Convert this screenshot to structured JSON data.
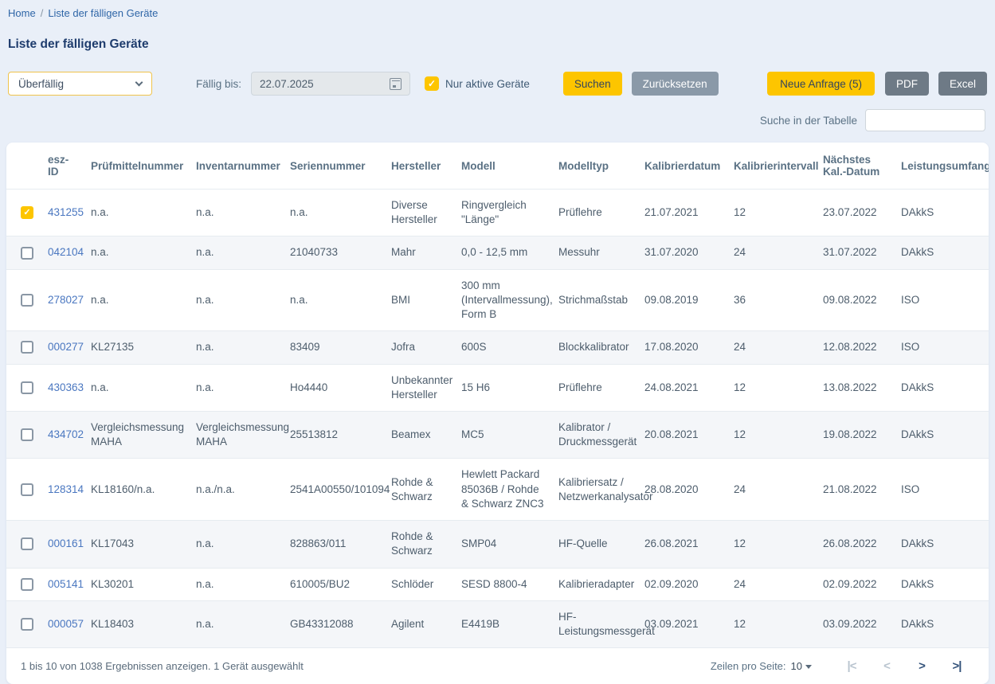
{
  "breadcrumb": {
    "home": "Home",
    "separator": "/",
    "current": "Liste der fälligen Geräte"
  },
  "page": {
    "title": "Liste der fälligen Geräte"
  },
  "filters": {
    "status_select_value": "Überfällig",
    "due_label": "Fällig bis:",
    "due_value": "22.07.2025",
    "active_checkbox_label": "Nur aktive Geräte",
    "active_checkbox_checked": true,
    "search_button": "Suchen",
    "reset_button": "Zurücksetzen",
    "new_request_button": "Neue Anfrage (5)",
    "pdf_button": "PDF",
    "excel_button": "Excel"
  },
  "table_search": {
    "label": "Suche in der Tabelle",
    "value": ""
  },
  "table": {
    "columns": [
      "esz-ID",
      "Prüfmittelnummer",
      "Inventarnummer",
      "Seriennummer",
      "Hersteller",
      "Modell",
      "Modelltyp",
      "Kalibrierdatum",
      "Kalibrierintervall",
      "Nächstes Kal.-Datum",
      "Leistungsumfang"
    ],
    "rows": [
      {
        "selected": true,
        "cells": [
          "431255",
          "n.a.",
          "n.a.",
          "n.a.",
          "Diverse Hersteller",
          "Ringvergleich \"Länge\"",
          "Prüflehre",
          "21.07.2021",
          "12",
          "23.07.2022",
          "DAkkS"
        ]
      },
      {
        "selected": false,
        "cells": [
          "042104",
          "n.a.",
          "n.a.",
          "21040733",
          "Mahr",
          "0,0 - 12,5 mm",
          "Messuhr",
          "31.07.2020",
          "24",
          "31.07.2022",
          "DAkkS"
        ]
      },
      {
        "selected": false,
        "cells": [
          "278027",
          "n.a.",
          "n.a.",
          "n.a.",
          "BMI",
          "300 mm (Intervallmessung), Form B",
          "Strichmaßstab",
          "09.08.2019",
          "36",
          "09.08.2022",
          "ISO"
        ]
      },
      {
        "selected": false,
        "cells": [
          "000277",
          "KL27135",
          "n.a.",
          "83409",
          "Jofra",
          "600S",
          "Blockkalibrator",
          "17.08.2020",
          "24",
          "12.08.2022",
          "ISO"
        ]
      },
      {
        "selected": false,
        "cells": [
          "430363",
          "n.a.",
          "n.a.",
          "Ho4440",
          "Unbekannter Hersteller",
          "15 H6",
          "Prüflehre",
          "24.08.2021",
          "12",
          "13.08.2022",
          "DAkkS"
        ]
      },
      {
        "selected": false,
        "cells": [
          "434702",
          "Vergleichsmessung MAHA",
          "Vergleichsmessung MAHA",
          "25513812",
          "Beamex",
          "MC5",
          "Kalibrator / Druckmessgerät",
          "20.08.2021",
          "12",
          "19.08.2022",
          "DAkkS"
        ]
      },
      {
        "selected": false,
        "cells": [
          "128314",
          "KL18160/n.a.",
          "n.a./n.a.",
          "2541A00550/101094",
          "Rohde & Schwarz",
          "Hewlett Packard 85036B / Rohde & Schwarz ZNC3",
          "Kalibriersatz / Netzwerkanalysator",
          "28.08.2020",
          "24",
          "21.08.2022",
          "ISO"
        ]
      },
      {
        "selected": false,
        "cells": [
          "000161",
          "KL17043",
          "n.a.",
          "828863/011",
          "Rohde & Schwarz",
          "SMP04",
          "HF-Quelle",
          "26.08.2021",
          "12",
          "26.08.2022",
          "DAkkS"
        ]
      },
      {
        "selected": false,
        "cells": [
          "005141",
          "KL30201",
          "n.a.",
          "610005/BU2",
          "Schlöder",
          "SESD 8800-4",
          "Kalibrieradapter",
          "02.09.2020",
          "24",
          "02.09.2022",
          "DAkkS"
        ]
      },
      {
        "selected": false,
        "cells": [
          "000057",
          "KL18403",
          "n.a.",
          "GB43312088",
          "Agilent",
          "E4419B",
          "HF-Leistungsmessgerät",
          "03.09.2021",
          "12",
          "03.09.2022",
          "DAkkS"
        ]
      }
    ]
  },
  "footer": {
    "results_text": "1 bis 10 von 1038 Ergebnissen anzeigen. 1 Gerät ausgewählt",
    "rows_per_page_label": "Zeilen pro Seite:",
    "rows_per_page_value": "10",
    "pagination": {
      "first": "|<",
      "prev": "<",
      "next": ">",
      "last": ">|"
    }
  },
  "colors": {
    "accent_yellow": "#fdc500",
    "page_background": "#e9eff8",
    "link_blue": "#4a77c0",
    "dark_navy": "#1e3c6d",
    "gray_button": "#8a99a8",
    "dark_gray_button": "#6e7a86"
  }
}
